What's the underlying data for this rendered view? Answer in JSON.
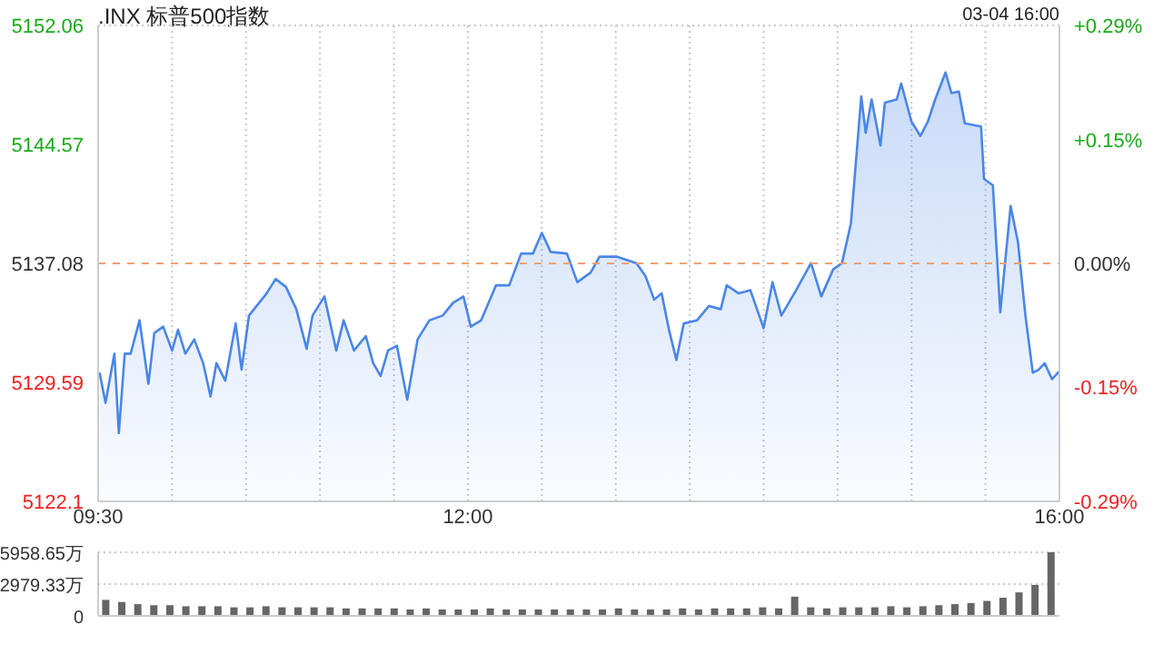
{
  "chart_data": [
    {
      "type": "area",
      "title": ".INX 标普500指数",
      "annotations": [
        "03-04 16:00"
      ],
      "x": [
        9.51,
        9.55,
        9.61,
        9.64,
        9.68,
        9.72,
        9.78,
        9.84,
        9.88,
        9.94,
        10.0,
        10.04,
        10.09,
        10.15,
        10.21,
        10.26,
        10.3,
        10.36,
        10.43,
        10.47,
        10.52,
        10.64,
        10.7,
        10.77,
        10.84,
        10.91,
        10.95,
        11.03,
        11.11,
        11.16,
        11.23,
        11.31,
        11.36,
        11.41,
        11.46,
        11.52,
        11.59,
        11.66,
        11.74,
        11.83,
        11.9,
        11.97,
        12.02,
        12.09,
        12.19,
        12.28,
        12.36,
        12.44,
        12.5,
        12.56,
        12.67,
        12.74,
        12.83,
        12.89,
        13.01,
        13.14,
        13.2,
        13.26,
        13.31,
        13.36,
        13.41,
        13.46,
        13.55,
        13.63,
        13.71,
        13.75,
        13.83,
        13.91,
        14.0,
        14.06,
        14.12,
        14.22,
        14.32,
        14.39,
        14.47,
        14.53,
        14.59,
        14.62,
        14.66,
        14.69,
        14.73,
        14.79,
        14.82,
        14.9,
        14.93,
        15.0,
        15.06,
        15.11,
        15.16,
        15.23,
        15.27,
        15.32,
        15.36,
        15.47,
        15.49,
        15.55,
        15.6,
        15.67,
        15.72,
        15.77,
        15.82,
        15.86,
        15.9,
        15.95,
        16.0
      ],
      "series": [
        {
          "color": "#4a86e8",
          "values": [
            5130.2,
            5128.3,
            5131.4,
            5126.4,
            5131.4,
            5131.4,
            5133.5,
            5129.5,
            5132.7,
            5133.1,
            5131.6,
            5132.9,
            5131.4,
            5132.3,
            5130.8,
            5128.7,
            5130.8,
            5129.7,
            5133.3,
            5130.4,
            5133.8,
            5135.2,
            5136.1,
            5135.6,
            5134.2,
            5131.7,
            5133.8,
            5135.0,
            5131.6,
            5133.5,
            5131.6,
            5132.5,
            5130.8,
            5130.0,
            5131.6,
            5131.9,
            5128.5,
            5132.3,
            5133.5,
            5133.8,
            5134.6,
            5135.0,
            5133.1,
            5133.5,
            5135.7,
            5135.7,
            5137.7,
            5137.7,
            5139.0,
            5137.8,
            5137.7,
            5135.9,
            5136.5,
            5137.5,
            5137.5,
            5137.1,
            5136.3,
            5134.8,
            5135.2,
            5132.9,
            5131.0,
            5133.3,
            5133.5,
            5134.4,
            5134.2,
            5135.7,
            5135.2,
            5135.4,
            5133.0,
            5135.9,
            5133.8,
            5135.4,
            5137.1,
            5135.0,
            5136.7,
            5137.1,
            5139.6,
            5143.0,
            5147.6,
            5145.3,
            5147.4,
            5144.5,
            5147.2,
            5147.4,
            5148.4,
            5146.0,
            5145.1,
            5146.0,
            5147.4,
            5149.1,
            5147.8,
            5147.9,
            5145.9,
            5145.7,
            5142.4,
            5142.0,
            5134.0,
            5140.7,
            5138.4,
            5133.8,
            5130.2,
            5130.4,
            5130.8,
            5129.8,
            5130.3
          ]
        }
      ],
      "xlim": [
        9.5,
        16
      ],
      "xticks": [
        {
          "value": 9.5,
          "label": "09:30"
        },
        {
          "value": 10,
          "label": null
        },
        {
          "value": 10.5,
          "label": null
        },
        {
          "value": 11,
          "label": null
        },
        {
          "value": 11.5,
          "label": null
        },
        {
          "value": 12,
          "label": "12:00"
        },
        {
          "value": 12.5,
          "label": null
        },
        {
          "value": 13,
          "label": null
        },
        {
          "value": 13.5,
          "label": null
        },
        {
          "value": 14,
          "label": null
        },
        {
          "value": 14.5,
          "label": null
        },
        {
          "value": 15,
          "label": null
        },
        {
          "value": 15.5,
          "label": null
        },
        {
          "value": 16,
          "label": "16:00"
        }
      ],
      "ylim": [
        5122.1,
        5152.06
      ],
      "yticks": [
        5122.1,
        5129.59,
        5137.08,
        5144.57,
        5152.06
      ],
      "y2lim": [
        -0.29,
        0.29
      ],
      "y2ticks": [
        {
          "value": -0.29,
          "label": "-0.29%"
        },
        {
          "value": -0.15,
          "label": "-0.15%"
        },
        {
          "value": 0,
          "label": "0.00%"
        },
        {
          "value": 0.15,
          "label": "+0.15%"
        },
        {
          "value": 0.29,
          "label": "+0.29%"
        }
      ],
      "ref_lines": [
        {
          "axis": "y",
          "value": 5137.08,
          "color": "#f0a070",
          "line_style": "dashed"
        }
      ],
      "grid": true
    },
    {
      "type": "bar",
      "categories": [
        null,
        null,
        null,
        null,
        null,
        null,
        null,
        null,
        null,
        null,
        null,
        null,
        null,
        null,
        null,
        null,
        null,
        null,
        null,
        null,
        null,
        null,
        null,
        null,
        null,
        null,
        null,
        null,
        null,
        null,
        null,
        null,
        null,
        null,
        null,
        null,
        null,
        null,
        null,
        null,
        null,
        null,
        null,
        null,
        null,
        null,
        null,
        null,
        null,
        null,
        null,
        null,
        null,
        null,
        null,
        null,
        null,
        null,
        null,
        null
      ],
      "values": [
        1500,
        1300,
        1100,
        1000,
        1000,
        900,
        900,
        900,
        800,
        800,
        900,
        800,
        800,
        800,
        800,
        700,
        700,
        700,
        700,
        600,
        700,
        600,
        600,
        600,
        700,
        600,
        600,
        600,
        600,
        600,
        600,
        600,
        700,
        600,
        600,
        600,
        700,
        600,
        700,
        700,
        700,
        800,
        700,
        1800,
        800,
        700,
        800,
        800,
        800,
        900,
        800,
        900,
        1000,
        1100,
        1200,
        1400,
        1700,
        2200,
        2900,
        5958.65
      ],
      "color": "#666666",
      "ylim": [
        0,
        5958.65
      ],
      "yticks": [
        {
          "value": 0,
          "label": "0"
        },
        {
          "value": 2979.33,
          "label": "2979.33万"
        },
        {
          "value": 5958.65,
          "label": "5958.65万"
        }
      ],
      "tick_labels": "y",
      "grid": true
    }
  ]
}
